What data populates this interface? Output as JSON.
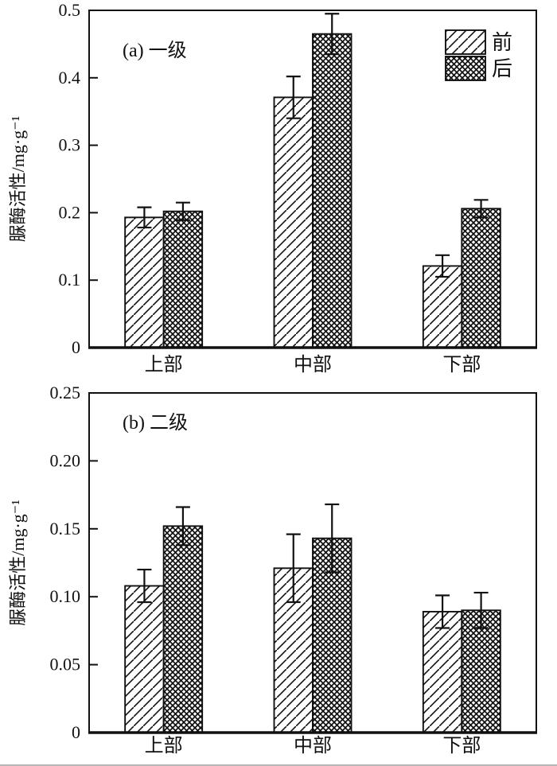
{
  "figure": {
    "background": "#ffffff",
    "ink_color": "#111111",
    "edge_line_color": "#b5b5b5"
  },
  "chart_data": [
    {
      "type": "bar",
      "panel_label": "(a) 一级",
      "ylabel": "脲酶活性/mg·g⁻¹",
      "categories": [
        "上部",
        "中部",
        "下部"
      ],
      "series": [
        {
          "name": "前",
          "pattern": "diagonal",
          "values": [
            0.193,
            0.371,
            0.121
          ],
          "errors": [
            0.015,
            0.031,
            0.016
          ]
        },
        {
          "name": "后",
          "pattern": "crosshatch",
          "values": [
            0.202,
            0.465,
            0.206
          ],
          "errors": [
            0.013,
            0.03,
            0.013
          ]
        }
      ],
      "ylim": [
        0,
        0.5
      ],
      "yticks": [
        [
          0,
          "0"
        ],
        [
          0.1,
          "0.1"
        ],
        [
          0.2,
          "0.2"
        ],
        [
          0.3,
          "0.3"
        ],
        [
          0.4,
          "0.4"
        ],
        [
          0.5,
          "0.5"
        ]
      ],
      "legend": {
        "visible": true,
        "position": "top-right",
        "entries": [
          "前",
          "后"
        ]
      },
      "grid": false
    },
    {
      "type": "bar",
      "panel_label": "(b) 二级",
      "ylabel": "脲酶活性/mg·g⁻¹",
      "categories": [
        "上部",
        "中部",
        "下部"
      ],
      "series": [
        {
          "name": "前",
          "pattern": "diagonal",
          "values": [
            0.108,
            0.121,
            0.089
          ],
          "errors": [
            0.012,
            0.025,
            0.012
          ]
        },
        {
          "name": "后",
          "pattern": "crosshatch",
          "values": [
            0.152,
            0.143,
            0.09
          ],
          "errors": [
            0.014,
            0.025,
            0.013
          ]
        }
      ],
      "ylim": [
        0,
        0.25
      ],
      "yticks": [
        [
          0,
          "0"
        ],
        [
          0.05,
          "0.05"
        ],
        [
          0.1,
          "0.10"
        ],
        [
          0.15,
          "0.15"
        ],
        [
          0.2,
          "0.20"
        ],
        [
          0.25,
          "0.25"
        ]
      ],
      "legend": {
        "visible": false,
        "position": "top-right",
        "entries": [
          "前",
          "后"
        ]
      },
      "grid": false
    }
  ]
}
